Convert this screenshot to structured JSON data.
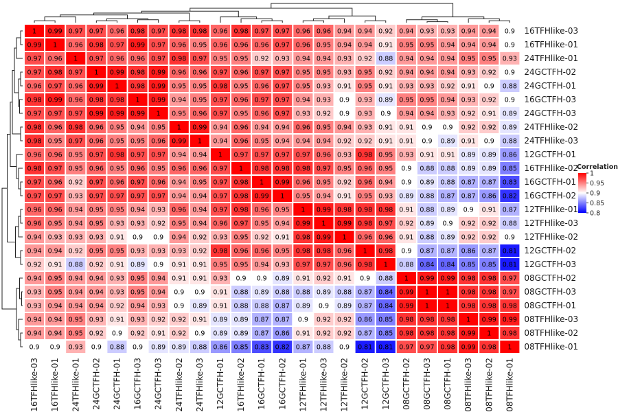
{
  "chart_data": {
    "type": "heatmap",
    "rows": [
      "16TFHlike-03",
      "16TFHlike-01",
      "24TFHlike-01",
      "24GCTFH-02",
      "24GCTFH-01",
      "16GCTFH-03",
      "24GCTFH-03",
      "24TFHlike-02",
      "24TFHlike-03",
      "12GCTFH-01",
      "16TFHlike-02",
      "16GCTFH-01",
      "16GCTFH-02",
      "12TFHlike-01",
      "12TFHlike-03",
      "12TFHlike-02",
      "12GCTFH-02",
      "12GCTFH-03",
      "08GCTFH-02",
      "08GCTFH-03",
      "08GCTFH-01",
      "08TFHlike-03",
      "08TFHlike-02",
      "08TFHlike-01"
    ],
    "columns": [
      "16TFHlike-03",
      "16TFHlike-01",
      "24TFHlike-01",
      "24GCTFH-02",
      "24GCTFH-01",
      "16GCTFH-03",
      "24GCTFH-03",
      "24TFHlike-02",
      "24TFHlike-03",
      "12GCTFH-01",
      "16TFHlike-02",
      "16GCTFH-01",
      "16GCTFH-02",
      "12TFHlike-01",
      "12TFHlike-03",
      "12TFHlike-02",
      "12GCTFH-02",
      "12GCTFH-03",
      "08GCTFH-02",
      "08GCTFH-03",
      "08GCTFH-01",
      "08TFHlike-03",
      "08TFHlike-02",
      "08TFHlike-01"
    ],
    "values": [
      [
        1,
        0.99,
        0.97,
        0.97,
        0.96,
        0.98,
        0.97,
        0.98,
        0.98,
        0.96,
        0.98,
        0.97,
        0.97,
        0.96,
        0.96,
        0.94,
        0.94,
        0.92,
        0.94,
        0.93,
        0.93,
        0.94,
        0.94,
        0.9
      ],
      [
        0.99,
        1,
        0.96,
        0.98,
        0.97,
        0.99,
        0.97,
        0.96,
        0.95,
        0.96,
        0.96,
        0.96,
        0.97,
        0.96,
        0.95,
        0.94,
        0.94,
        0.91,
        0.95,
        0.95,
        0.94,
        0.94,
        0.94,
        0.9
      ],
      [
        0.97,
        0.96,
        1,
        0.97,
        0.96,
        0.96,
        0.97,
        0.98,
        0.97,
        0.95,
        0.95,
        0.92,
        0.93,
        0.94,
        0.94,
        0.93,
        0.92,
        0.88,
        0.94,
        0.94,
        0.94,
        0.95,
        0.95,
        0.93
      ],
      [
        0.97,
        0.98,
        0.97,
        1,
        0.99,
        0.98,
        0.99,
        0.96,
        0.96,
        0.97,
        0.96,
        0.97,
        0.97,
        0.95,
        0.95,
        0.93,
        0.95,
        0.92,
        0.94,
        0.94,
        0.94,
        0.93,
        0.92,
        0.9
      ],
      [
        0.96,
        0.97,
        0.96,
        0.99,
        1,
        0.98,
        0.99,
        0.95,
        0.95,
        0.98,
        0.95,
        0.96,
        0.97,
        0.95,
        0.93,
        0.91,
        0.95,
        0.91,
        0.93,
        0.93,
        0.92,
        0.91,
        0.9,
        0.88
      ],
      [
        0.98,
        0.99,
        0.96,
        0.98,
        0.98,
        1,
        0.99,
        0.94,
        0.95,
        0.97,
        0.96,
        0.97,
        0.97,
        0.94,
        0.93,
        0.9,
        0.93,
        0.89,
        0.95,
        0.95,
        0.94,
        0.93,
        0.92,
        0.9
      ],
      [
        0.97,
        0.97,
        0.97,
        0.99,
        0.99,
        0.99,
        1,
        0.95,
        0.96,
        0.97,
        0.95,
        0.96,
        0.97,
        0.93,
        0.92,
        0.9,
        0.93,
        0.9,
        0.94,
        0.94,
        0.93,
        0.92,
        0.91,
        0.89
      ],
      [
        0.98,
        0.96,
        0.98,
        0.96,
        0.95,
        0.94,
        0.95,
        1,
        0.99,
        0.94,
        0.96,
        0.94,
        0.94,
        0.96,
        0.95,
        0.94,
        0.93,
        0.91,
        0.91,
        0.9,
        0.9,
        0.92,
        0.92,
        0.89
      ],
      [
        0.98,
        0.95,
        0.97,
        0.96,
        0.95,
        0.95,
        0.96,
        0.99,
        1,
        0.94,
        0.96,
        0.95,
        0.94,
        0.94,
        0.94,
        0.92,
        0.92,
        0.91,
        0.91,
        0.9,
        0.89,
        0.91,
        0.9,
        0.88
      ],
      [
        0.96,
        0.96,
        0.95,
        0.97,
        0.98,
        0.97,
        0.97,
        0.94,
        0.94,
        1,
        0.97,
        0.97,
        0.97,
        0.97,
        0.96,
        0.93,
        0.98,
        0.95,
        0.93,
        0.91,
        0.91,
        0.89,
        0.89,
        0.86
      ],
      [
        0.98,
        0.97,
        0.95,
        0.96,
        0.95,
        0.96,
        0.95,
        0.96,
        0.96,
        0.97,
        1,
        0.98,
        0.98,
        0.98,
        0.97,
        0.95,
        0.96,
        0.95,
        0.9,
        0.88,
        0.88,
        0.89,
        0.89,
        0.85
      ],
      [
        0.97,
        0.96,
        0.92,
        0.97,
        0.96,
        0.97,
        0.96,
        0.94,
        0.95,
        0.97,
        0.98,
        1,
        0.99,
        0.96,
        0.95,
        0.92,
        0.96,
        0.94,
        0.9,
        0.89,
        0.88,
        0.87,
        0.87,
        0.83
      ],
      [
        0.97,
        0.97,
        0.93,
        0.97,
        0.97,
        0.97,
        0.97,
        0.94,
        0.94,
        0.97,
        0.98,
        0.99,
        1,
        0.95,
        0.94,
        0.91,
        0.95,
        0.93,
        0.89,
        0.88,
        0.87,
        0.87,
        0.86,
        0.82
      ],
      [
        0.96,
        0.96,
        0.94,
        0.95,
        0.95,
        0.94,
        0.93,
        0.96,
        0.94,
        0.97,
        0.98,
        0.96,
        0.95,
        1,
        0.99,
        0.98,
        0.98,
        0.98,
        0.91,
        0.88,
        0.89,
        0.9,
        0.91,
        0.87
      ],
      [
        0.96,
        0.95,
        0.94,
        0.95,
        0.93,
        0.93,
        0.92,
        0.95,
        0.94,
        0.96,
        0.97,
        0.95,
        0.94,
        0.99,
        1,
        0.99,
        0.98,
        0.97,
        0.92,
        0.89,
        0.9,
        0.92,
        0.92,
        0.88
      ],
      [
        0.94,
        0.93,
        0.93,
        0.93,
        0.91,
        0.9,
        0.9,
        0.94,
        0.92,
        0.93,
        0.95,
        0.92,
        0.91,
        0.98,
        0.99,
        1,
        0.96,
        0.96,
        0.91,
        0.88,
        0.89,
        0.92,
        0.92,
        0.9
      ],
      [
        0.94,
        0.94,
        0.92,
        0.95,
        0.95,
        0.93,
        0.93,
        0.93,
        0.92,
        0.98,
        0.96,
        0.96,
        0.95,
        0.98,
        0.98,
        0.96,
        1,
        0.98,
        0.9,
        0.87,
        0.87,
        0.86,
        0.87,
        0.81
      ],
      [
        0.92,
        0.91,
        0.88,
        0.92,
        0.91,
        0.89,
        0.9,
        0.91,
        0.91,
        0.95,
        0.95,
        0.94,
        0.93,
        0.97,
        0.97,
        0.96,
        0.98,
        1,
        0.88,
        0.84,
        0.84,
        0.85,
        0.85,
        0.81
      ],
      [
        0.94,
        0.95,
        0.94,
        0.94,
        0.93,
        0.95,
        0.94,
        0.91,
        0.91,
        0.93,
        0.9,
        0.9,
        0.89,
        0.91,
        0.92,
        0.91,
        0.9,
        0.88,
        1,
        0.99,
        0.99,
        0.98,
        0.98,
        0.97
      ],
      [
        0.93,
        0.95,
        0.94,
        0.94,
        0.93,
        0.95,
        0.94,
        0.9,
        0.9,
        0.91,
        0.88,
        0.89,
        0.88,
        0.88,
        0.89,
        0.88,
        0.87,
        0.84,
        0.99,
        1,
        1,
        0.98,
        0.98,
        0.97
      ],
      [
        0.93,
        0.94,
        0.94,
        0.94,
        0.92,
        0.94,
        0.93,
        0.9,
        0.89,
        0.91,
        0.88,
        0.88,
        0.87,
        0.89,
        0.9,
        0.89,
        0.87,
        0.84,
        0.99,
        1,
        1,
        0.98,
        0.98,
        0.98
      ],
      [
        0.94,
        0.94,
        0.95,
        0.93,
        0.91,
        0.93,
        0.92,
        0.92,
        0.91,
        0.89,
        0.89,
        0.87,
        0.87,
        0.9,
        0.92,
        0.92,
        0.86,
        0.85,
        0.98,
        0.98,
        0.98,
        1,
        0.99,
        0.99
      ],
      [
        0.94,
        0.94,
        0.95,
        0.92,
        0.9,
        0.92,
        0.91,
        0.92,
        0.9,
        0.89,
        0.89,
        0.87,
        0.86,
        0.91,
        0.92,
        0.92,
        0.87,
        0.85,
        0.98,
        0.98,
        0.98,
        0.99,
        1,
        0.98
      ],
      [
        0.9,
        0.9,
        0.93,
        0.9,
        0.88,
        0.9,
        0.89,
        0.89,
        0.88,
        0.86,
        0.85,
        0.83,
        0.82,
        0.87,
        0.88,
        0.9,
        0.81,
        0.81,
        0.97,
        0.97,
        0.98,
        0.99,
        0.98,
        1
      ]
    ],
    "color_scale": {
      "low_color": "#0000ff",
      "mid_color": "#ffffff",
      "high_color": "#ff0000",
      "low": 0.8,
      "mid": 0.9,
      "high": 1.0
    },
    "legend": {
      "title": "Correlation",
      "ticks": [
        1,
        0.95,
        0.9,
        0.85,
        0.8
      ],
      "placement": "right"
    },
    "dendrogram": {
      "rows": "left",
      "columns": "top"
    },
    "cell_labels": true,
    "grid": false
  }
}
